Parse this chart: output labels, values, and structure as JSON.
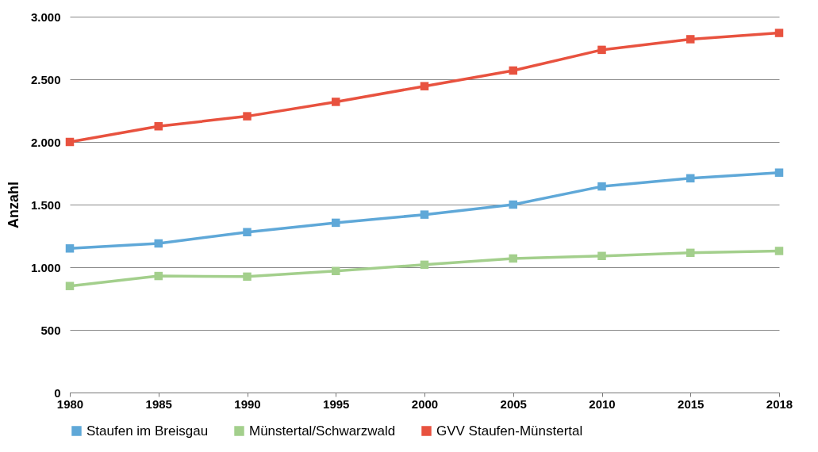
{
  "chart_data": {
    "type": "line",
    "ylabel": "Anzahl",
    "categories": [
      "1980",
      "1985",
      "1990",
      "1995",
      "2000",
      "2005",
      "2010",
      "2015",
      "2018"
    ],
    "series": [
      {
        "name": "Staufen im Breisgau",
        "color": "#5fa8d8",
        "values": [
          1150,
          1190,
          1280,
          1355,
          1420,
          1500,
          1645,
          1710,
          1755
        ]
      },
      {
        "name": "Münstertal/Schwarzwald",
        "color": "#a3cf8c",
        "values": [
          850,
          930,
          925,
          970,
          1020,
          1070,
          1090,
          1115,
          1130
        ]
      },
      {
        "name": "GVV Staufen-Münstertal",
        "color": "#e8523f",
        "values": [
          2000,
          2125,
          2205,
          2320,
          2445,
          2570,
          2735,
          2820,
          2870
        ]
      }
    ],
    "ylim": [
      0,
      3000
    ],
    "yticks": [
      0,
      500,
      {
        "value": 1000,
        "label": "1.000"
      },
      {
        "value": 1500,
        "label": "1.500"
      },
      {
        "value": 2000,
        "label": "2.000"
      },
      {
        "value": 2500,
        "label": "2.500"
      },
      {
        "value": 3000,
        "label": "3.000"
      }
    ],
    "grid": "y",
    "legend": "bottom",
    "marker": "square",
    "line_style": "solid"
  }
}
